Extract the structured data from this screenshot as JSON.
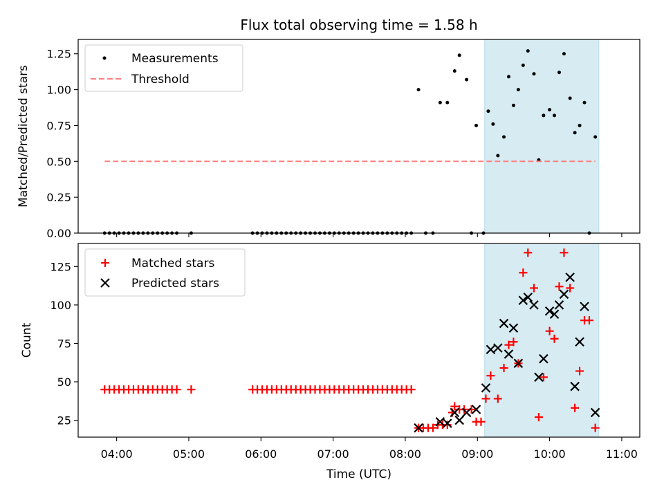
{
  "chart_data": [
    {
      "type": "scatter",
      "title": "Flux total observing time = 1.58 h",
      "xlabel": "",
      "ylabel": "Matched/Predicted stars",
      "xlim": [
        "03:28",
        "11:15"
      ],
      "ylim": [
        0,
        1.35
      ],
      "yticks": [
        0,
        0.25,
        0.5,
        0.75,
        1.0,
        1.25
      ],
      "ytick_labels": [
        "0.00",
        "0.25",
        "0.50",
        "0.75",
        "1.00",
        "1.25"
      ],
      "grid": false,
      "legend": "top-left",
      "highlight_span": {
        "x0": "09:06",
        "x1": "10:41",
        "color": "#add8e6"
      },
      "series": [
        {
          "name": "Measurements",
          "marker": "dot",
          "color": "#000000",
          "points": [
            [
              "03:50",
              0
            ],
            [
              "03:54",
              0
            ],
            [
              "03:58",
              0
            ],
            [
              "04:02",
              0
            ],
            [
              "04:06",
              0
            ],
            [
              "04:10",
              0
            ],
            [
              "04:14",
              0
            ],
            [
              "04:18",
              0
            ],
            [
              "04:22",
              0
            ],
            [
              "04:26",
              0
            ],
            [
              "04:30",
              0
            ],
            [
              "04:34",
              0
            ],
            [
              "04:38",
              0
            ],
            [
              "04:42",
              0
            ],
            [
              "04:46",
              0
            ],
            [
              "04:50",
              0
            ],
            [
              "05:02",
              0
            ],
            [
              "05:53",
              0
            ],
            [
              "05:57",
              0
            ],
            [
              "06:01",
              0
            ],
            [
              "06:05",
              0
            ],
            [
              "06:09",
              0
            ],
            [
              "06:13",
              0
            ],
            [
              "06:17",
              0
            ],
            [
              "06:21",
              0
            ],
            [
              "06:25",
              0
            ],
            [
              "06:29",
              0
            ],
            [
              "06:33",
              0
            ],
            [
              "06:37",
              0
            ],
            [
              "06:41",
              0
            ],
            [
              "06:45",
              0
            ],
            [
              "06:49",
              0
            ],
            [
              "06:53",
              0
            ],
            [
              "06:57",
              0
            ],
            [
              "07:01",
              0
            ],
            [
              "07:05",
              0
            ],
            [
              "07:09",
              0
            ],
            [
              "07:13",
              0
            ],
            [
              "07:17",
              0
            ],
            [
              "07:21",
              0
            ],
            [
              "07:25",
              0
            ],
            [
              "07:29",
              0
            ],
            [
              "07:33",
              0
            ],
            [
              "07:37",
              0
            ],
            [
              "07:41",
              0
            ],
            [
              "07:45",
              0
            ],
            [
              "07:49",
              0
            ],
            [
              "07:53",
              0
            ],
            [
              "07:57",
              0
            ],
            [
              "08:01",
              0
            ],
            [
              "08:05",
              0
            ],
            [
              "08:11",
              1.0
            ],
            [
              "08:17",
              0
            ],
            [
              "08:23",
              0
            ],
            [
              "08:29",
              0.91
            ],
            [
              "08:35",
              0.91
            ],
            [
              "08:41",
              1.13
            ],
            [
              "08:45",
              1.24
            ],
            [
              "08:51",
              1.07
            ],
            [
              "08:55",
              0
            ],
            [
              "08:59",
              0.75
            ],
            [
              "09:05",
              0
            ],
            [
              "09:09",
              0.85
            ],
            [
              "09:13",
              0.76
            ],
            [
              "09:17",
              0.54
            ],
            [
              "09:22",
              0.67
            ],
            [
              "09:26",
              1.09
            ],
            [
              "09:30",
              0.89
            ],
            [
              "09:34",
              1.0
            ],
            [
              "09:38",
              1.17
            ],
            [
              "09:42",
              1.27
            ],
            [
              "09:47",
              1.11
            ],
            [
              "09:51",
              0.51
            ],
            [
              "09:55",
              0.82
            ],
            [
              "10:00",
              0.86
            ],
            [
              "10:04",
              0.82
            ],
            [
              "10:08",
              1.12
            ],
            [
              "10:12",
              1.25
            ],
            [
              "10:17",
              0.94
            ],
            [
              "10:21",
              0.7
            ],
            [
              "10:25",
              0.75
            ],
            [
              "10:29",
              0.91
            ],
            [
              "10:33",
              0
            ],
            [
              "10:38",
              0.67
            ]
          ]
        },
        {
          "name": "Threshold",
          "type": "line",
          "style": "dashed",
          "color": "#ff7f7f",
          "points": [
            [
              "03:50",
              0.5
            ],
            [
              "10:38",
              0.5
            ]
          ]
        }
      ]
    },
    {
      "type": "scatter",
      "xlabel": "Time (UTC)",
      "ylabel": "Count",
      "xlim": [
        "03:28",
        "11:15"
      ],
      "ylim": [
        14,
        140
      ],
      "yticks": [
        25,
        50,
        75,
        100,
        125
      ],
      "ytick_labels": [
        "25",
        "50",
        "75",
        "100",
        "125"
      ],
      "xticks": [
        "04:00",
        "05:00",
        "06:00",
        "07:00",
        "08:00",
        "09:00",
        "10:00",
        "11:00"
      ],
      "xtick_labels": [
        "04:00",
        "05:00",
        "06:00",
        "07:00",
        "08:00",
        "09:00",
        "10:00",
        "11:00"
      ],
      "grid": false,
      "legend": "top-left",
      "highlight_span": {
        "x0": "09:06",
        "x1": "10:41",
        "color": "#add8e6"
      },
      "series": [
        {
          "name": "Matched stars",
          "marker": "plus",
          "color": "#ff0000",
          "points": [
            [
              "03:50",
              45
            ],
            [
              "03:54",
              45
            ],
            [
              "03:58",
              45
            ],
            [
              "04:02",
              45
            ],
            [
              "04:06",
              45
            ],
            [
              "04:10",
              45
            ],
            [
              "04:14",
              45
            ],
            [
              "04:18",
              45
            ],
            [
              "04:22",
              45
            ],
            [
              "04:26",
              45
            ],
            [
              "04:30",
              45
            ],
            [
              "04:34",
              45
            ],
            [
              "04:38",
              45
            ],
            [
              "04:42",
              45
            ],
            [
              "04:46",
              45
            ],
            [
              "04:50",
              45
            ],
            [
              "05:02",
              45
            ],
            [
              "05:53",
              45
            ],
            [
              "05:57",
              45
            ],
            [
              "06:01",
              45
            ],
            [
              "06:05",
              45
            ],
            [
              "06:09",
              45
            ],
            [
              "06:13",
              45
            ],
            [
              "06:17",
              45
            ],
            [
              "06:21",
              45
            ],
            [
              "06:25",
              45
            ],
            [
              "06:29",
              45
            ],
            [
              "06:33",
              45
            ],
            [
              "06:37",
              45
            ],
            [
              "06:41",
              45
            ],
            [
              "06:45",
              45
            ],
            [
              "06:49",
              45
            ],
            [
              "06:53",
              45
            ],
            [
              "06:57",
              45
            ],
            [
              "07:01",
              45
            ],
            [
              "07:05",
              45
            ],
            [
              "07:09",
              45
            ],
            [
              "07:13",
              45
            ],
            [
              "07:17",
              45
            ],
            [
              "07:21",
              45
            ],
            [
              "07:25",
              45
            ],
            [
              "07:29",
              45
            ],
            [
              "07:33",
              45
            ],
            [
              "07:37",
              45
            ],
            [
              "07:41",
              45
            ],
            [
              "07:45",
              45
            ],
            [
              "07:49",
              45
            ],
            [
              "07:53",
              45
            ],
            [
              "07:57",
              45
            ],
            [
              "08:01",
              45
            ],
            [
              "08:05",
              45
            ],
            [
              "08:11",
              20
            ],
            [
              "08:15",
              20
            ],
            [
              "08:19",
              20
            ],
            [
              "08:23",
              20
            ],
            [
              "08:27",
              22
            ],
            [
              "08:31",
              22
            ],
            [
              "08:35",
              22
            ],
            [
              "08:39",
              30
            ],
            [
              "08:41",
              34
            ],
            [
              "08:45",
              32
            ],
            [
              "08:49",
              32
            ],
            [
              "08:55",
              32
            ],
            [
              "08:59",
              24
            ],
            [
              "09:03",
              24
            ],
            [
              "09:07",
              39
            ],
            [
              "09:11",
              54
            ],
            [
              "09:17",
              39
            ],
            [
              "09:22",
              59
            ],
            [
              "09:26",
              74
            ],
            [
              "09:30",
              76
            ],
            [
              "09:34",
              62
            ],
            [
              "09:38",
              121
            ],
            [
              "09:42",
              134
            ],
            [
              "09:47",
              111
            ],
            [
              "09:51",
              27
            ],
            [
              "09:55",
              53
            ],
            [
              "10:00",
              83
            ],
            [
              "10:04",
              78
            ],
            [
              "10:08",
              112
            ],
            [
              "10:12",
              134
            ],
            [
              "10:17",
              111
            ],
            [
              "10:21",
              33
            ],
            [
              "10:25",
              57
            ],
            [
              "10:29",
              90
            ],
            [
              "10:33",
              90
            ],
            [
              "10:38",
              20
            ]
          ]
        },
        {
          "name": "Predicted stars",
          "marker": "x",
          "color": "#000000",
          "points": [
            [
              "08:11",
              20
            ],
            [
              "08:29",
              24
            ],
            [
              "08:35",
              23
            ],
            [
              "08:41",
              30
            ],
            [
              "08:45",
              25
            ],
            [
              "08:51",
              30
            ],
            [
              "08:59",
              32
            ],
            [
              "09:07",
              46
            ],
            [
              "09:11",
              71
            ],
            [
              "09:17",
              72
            ],
            [
              "09:22",
              88
            ],
            [
              "09:26",
              68
            ],
            [
              "09:30",
              85
            ],
            [
              "09:34",
              62
            ],
            [
              "09:38",
              103
            ],
            [
              "09:42",
              105
            ],
            [
              "09:47",
              100
            ],
            [
              "09:51",
              53
            ],
            [
              "09:55",
              65
            ],
            [
              "10:00",
              96
            ],
            [
              "10:04",
              94
            ],
            [
              "10:08",
              100
            ],
            [
              "10:12",
              107
            ],
            [
              "10:17",
              118
            ],
            [
              "10:21",
              47
            ],
            [
              "10:25",
              76
            ],
            [
              "10:29",
              99
            ],
            [
              "10:38",
              30
            ]
          ]
        }
      ]
    }
  ]
}
